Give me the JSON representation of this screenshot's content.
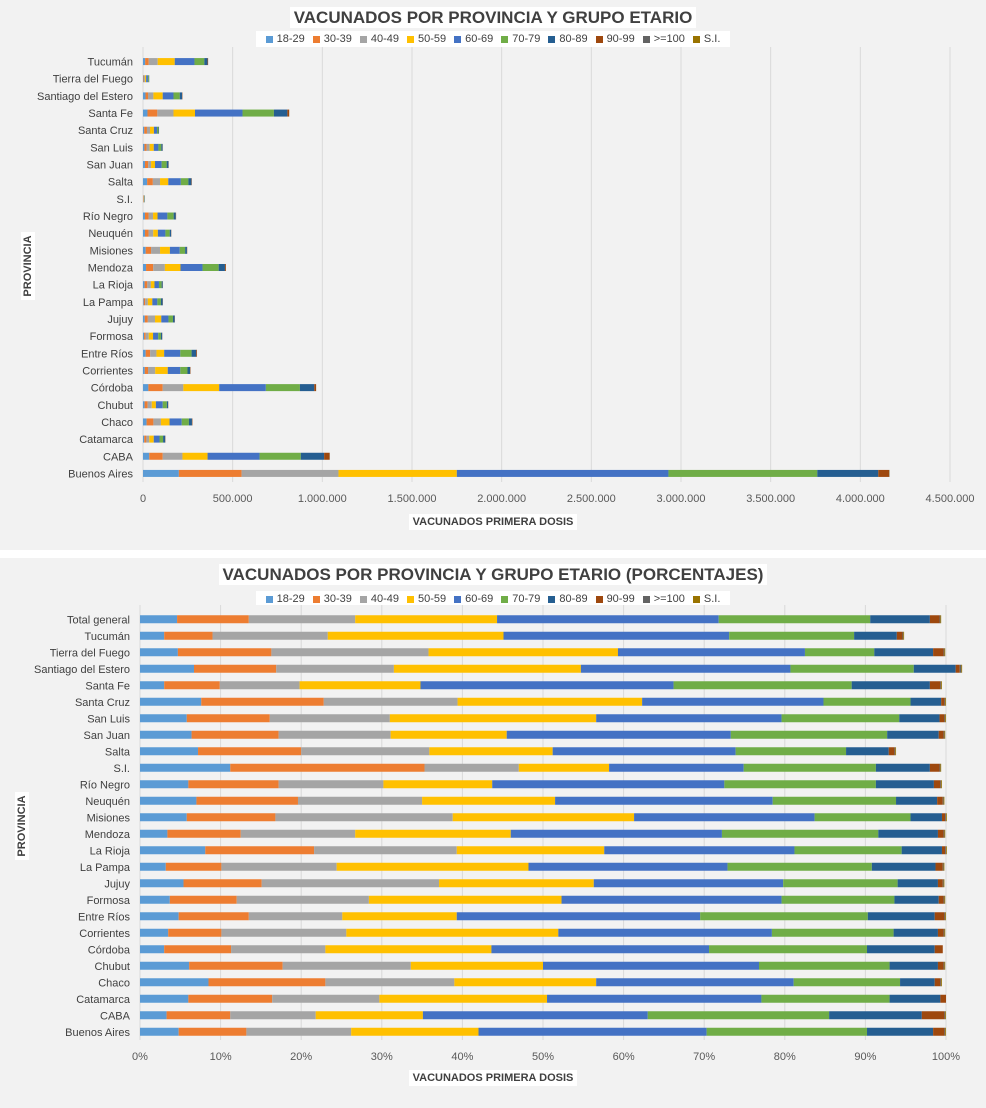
{
  "colors": {
    "18-29": "#5b9bd5",
    "30-39": "#ed7d31",
    "40-49": "#a5a5a5",
    "50-59": "#ffc000",
    "60-69": "#4472c4",
    "70-79": "#70ad47",
    "80-89": "#255e91",
    "90-99": "#9e480e",
    ">=100": "#636363",
    "S.I.": "#997300"
  },
  "chart_data": [
    {
      "type": "bar",
      "orientation": "horizontal",
      "stacked": true,
      "title": "VACUNADOS POR PROVINCIA Y GRUPO ETARIO",
      "xlabel": "VACUNADOS PRIMERA  DOSIS",
      "ylabel": "PROVINCIA",
      "xlim": [
        0,
        4500000
      ],
      "xticks": [
        "0",
        "500.000",
        "1.000.000",
        "1.500.000",
        "2.000.000",
        "2.500.000",
        "3.000.000",
        "3.500.000",
        "4.000.000",
        "4.500.000"
      ],
      "grid": true,
      "legend": "top",
      "categories": [
        "Buenos Aires",
        "CABA",
        "Catamarca",
        "Chaco",
        "Chubut",
        "Córdoba",
        "Corrientes",
        "Entre Ríos",
        "Formosa",
        "Jujuy",
        "La Pampa",
        "La Rioja",
        "Mendoza",
        "Misiones",
        "Neuquén",
        "Río Negro",
        "S.I.",
        "Salta",
        "San Juan",
        "San Luis",
        "Santa Cruz",
        "Santa Fe",
        "Santiago del Estero",
        "Tierra del Fuego",
        "Tucumán"
      ],
      "series": [
        {
          "name": "18-29",
          "values": [
            200000,
            35000,
            7000,
            20000,
            9000,
            30000,
            10000,
            15000,
            6000,
            10000,
            4000,
            9000,
            17000,
            15000,
            11000,
            11000,
            1200,
            23000,
            11000,
            8000,
            7000,
            25000,
            14000,
            2500,
            12000
          ]
        },
        {
          "name": "30-39",
          "values": [
            350000,
            75000,
            12000,
            38000,
            17000,
            80000,
            18000,
            25000,
            9000,
            17000,
            8000,
            15000,
            40000,
            30000,
            20000,
            20000,
            2500,
            32000,
            18000,
            12000,
            15000,
            55000,
            14000,
            4000,
            20000
          ]
        },
        {
          "name": "40-49",
          "values": [
            540000,
            110000,
            16000,
            42000,
            23000,
            115000,
            40000,
            35000,
            17000,
            40000,
            15000,
            20000,
            65000,
            50000,
            26000,
            25000,
            1200,
            40000,
            16000,
            17000,
            17000,
            90000,
            30000,
            5000,
            50000
          ]
        },
        {
          "name": "50-59",
          "values": [
            660000,
            140000,
            25000,
            48000,
            23000,
            200000,
            70000,
            43000,
            24000,
            35000,
            25000,
            20000,
            87000,
            55000,
            26000,
            25000,
            1000,
            46000,
            22000,
            23000,
            22000,
            120000,
            52000,
            6000,
            95000
          ]
        },
        {
          "name": "60-69",
          "values": [
            1180000,
            290000,
            32000,
            68000,
            38000,
            260000,
            70000,
            90000,
            29000,
            40000,
            28000,
            25000,
            123000,
            55000,
            42000,
            55000,
            1600,
            70000,
            37000,
            26000,
            17000,
            265000,
            60000,
            10000,
            110000
          ]
        },
        {
          "name": "70-79",
          "values": [
            830000,
            230000,
            20000,
            40000,
            23000,
            190000,
            40000,
            63000,
            15000,
            25000,
            20000,
            15000,
            90000,
            30000,
            24000,
            35000,
            1800,
            42000,
            28000,
            16000,
            8000,
            175000,
            35000,
            5000,
            55000
          ]
        },
        {
          "name": "80-89",
          "values": [
            340000,
            130000,
            12000,
            17000,
            7000,
            80000,
            15000,
            26000,
            7000,
            10000,
            10000,
            6000,
            35000,
            10000,
            8000,
            12000,
            800,
            17000,
            10000,
            7000,
            3000,
            75000,
            13000,
            2000,
            18000
          ]
        },
        {
          "name": "90-99",
          "values": [
            60000,
            30000,
            1200,
            2500,
            1000,
            10000,
            2000,
            4000,
            800,
            1000,
            1000,
            700,
            5000,
            1500,
            1000,
            1500,
            300,
            2000,
            1000,
            800,
            400,
            10000,
            2000,
            300,
            3000
          ]
        },
        {
          "name": ">=100",
          "values": [
            2000,
            1000,
            50,
            100,
            50,
            300,
            100,
            150,
            30,
            50,
            30,
            30,
            200,
            50,
            30,
            50,
            20,
            50,
            30,
            20,
            20,
            400,
            80,
            10,
            100
          ]
        },
        {
          "name": "S.I.",
          "values": [
            1000,
            400,
            20,
            50,
            20,
            200,
            50,
            50,
            20,
            20,
            20,
            20,
            100,
            20,
            20,
            20,
            10,
            20,
            20,
            10,
            10,
            200,
            30,
            10,
            50
          ]
        }
      ]
    },
    {
      "type": "bar",
      "orientation": "horizontal",
      "stacked": true,
      "percent": true,
      "title": "VACUNADOS POR PROVINCIA Y GRUPO ETARIO (PORCENTAJES)",
      "xlabel": "VACUNADOS PRIMERA  DOSIS",
      "ylabel": "PROVINCIA",
      "xlim": [
        0,
        100
      ],
      "xticks": [
        "0%",
        "10%",
        "20%",
        "30%",
        "40%",
        "50%",
        "60%",
        "70%",
        "80%",
        "90%",
        "100%"
      ],
      "grid": true,
      "legend": "top",
      "categories": [
        "Buenos Aires",
        "CABA",
        "Catamarca",
        "Chaco",
        "Chubut",
        "Córdoba",
        "Corrientes",
        "Entre Ríos",
        "Formosa",
        "Jujuy",
        "La Pampa",
        "La Rioja",
        "Mendoza",
        "Misiones",
        "Neuquén",
        "Río Negro",
        "S.I.",
        "Salta",
        "San Juan",
        "San Luis",
        "Santa Cruz",
        "Santa Fe",
        "Santiago del Estero",
        "Tierra del Fuego",
        "Tucumán",
        "Total general"
      ],
      "series": [
        {
          "name": "18-29",
          "values": [
            4.8,
            3.3,
            6.0,
            8.5,
            6.1,
            3.0,
            3.5,
            4.8,
            3.7,
            5.4,
            3.2,
            8.1,
            3.4,
            5.8,
            7.0,
            6.0,
            11.2,
            7.2,
            6.4,
            5.8,
            7.6,
            3.0,
            6.7,
            4.7,
            3.0,
            4.6
          ]
        },
        {
          "name": "30-39",
          "values": [
            8.4,
            7.9,
            10.4,
            14.5,
            11.6,
            8.3,
            6.6,
            8.7,
            8.3,
            9.7,
            6.9,
            13.5,
            9.1,
            11.0,
            12.6,
            11.2,
            24.1,
            12.8,
            10.8,
            10.3,
            15.2,
            6.9,
            10.2,
            11.6,
            6.0,
            8.9
          ]
        },
        {
          "name": "40-49",
          "values": [
            13.0,
            10.6,
            13.3,
            16.0,
            15.9,
            11.7,
            15.5,
            11.6,
            16.4,
            22.0,
            14.3,
            17.7,
            14.2,
            22.0,
            15.4,
            13.0,
            11.7,
            15.9,
            13.9,
            14.9,
            16.6,
            9.9,
            14.6,
            19.5,
            14.3,
            13.2
          ]
        },
        {
          "name": "50-59",
          "values": [
            15.8,
            13.3,
            20.8,
            17.6,
            16.4,
            20.6,
            26.3,
            14.2,
            23.9,
            19.2,
            23.8,
            18.3,
            19.3,
            22.5,
            16.5,
            13.5,
            11.2,
            15.3,
            14.4,
            25.6,
            22.9,
            15.0,
            23.2,
            23.5,
            21.8,
            17.6
          ]
        },
        {
          "name": "60-69",
          "values": [
            28.3,
            27.9,
            26.6,
            24.5,
            26.8,
            27.0,
            26.5,
            30.2,
            27.3,
            23.5,
            24.7,
            23.6,
            26.2,
            22.4,
            27.0,
            28.8,
            16.7,
            22.7,
            27.8,
            23.0,
            22.5,
            31.4,
            26.0,
            23.2,
            28.0,
            27.5
          ]
        },
        {
          "name": "70-79",
          "values": [
            19.9,
            22.5,
            15.9,
            13.2,
            16.2,
            19.6,
            15.1,
            20.8,
            14.0,
            14.2,
            17.9,
            13.3,
            19.4,
            11.9,
            15.3,
            18.8,
            16.4,
            13.7,
            19.4,
            14.6,
            10.8,
            22.1,
            15.3,
            8.6,
            15.5,
            18.8
          ]
        },
        {
          "name": "80-89",
          "values": [
            8.2,
            11.5,
            6.3,
            4.3,
            6.0,
            8.4,
            5.5,
            8.3,
            5.5,
            5.0,
            7.9,
            5.0,
            7.4,
            3.9,
            5.1,
            7.2,
            6.7,
            5.3,
            6.4,
            5.0,
            3.8,
            9.7,
            5.2,
            7.3,
            5.3,
            7.4
          ]
        },
        {
          "name": "90-99",
          "values": [
            1.4,
            2.8,
            0.7,
            0.7,
            0.7,
            1.0,
            0.7,
            1.2,
            0.6,
            0.6,
            0.9,
            0.4,
            0.7,
            0.4,
            0.7,
            0.8,
            1.2,
            0.7,
            0.6,
            0.6,
            0.4,
            1.3,
            0.5,
            1.3,
            0.7,
            1.2
          ]
        },
        {
          "name": ">=100",
          "values": [
            0.1,
            0.1,
            0.0,
            0.1,
            0.1,
            0.0,
            0.1,
            0.1,
            0.1,
            0.1,
            0.1,
            0.1,
            0.1,
            0.1,
            0.1,
            0.1,
            0.1,
            0.1,
            0.1,
            0.1,
            0.1,
            0.1,
            0.2,
            0.1,
            0.1,
            0.1
          ]
        },
        {
          "name": "S.I.",
          "values": [
            0.1,
            0.1,
            0.0,
            0.1,
            0.1,
            0.0,
            0.1,
            0.1,
            0.1,
            0.1,
            0.1,
            0.1,
            0.1,
            0.1,
            0.1,
            0.1,
            0.1,
            0.1,
            0.1,
            0.1,
            0.1,
            0.1,
            0.1,
            0.1,
            0.1,
            0.1
          ]
        }
      ]
    }
  ]
}
